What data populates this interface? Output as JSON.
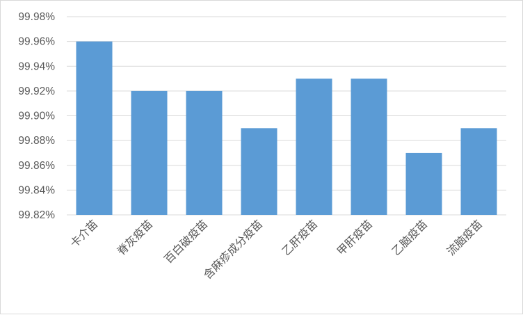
{
  "chart_data": {
    "type": "bar",
    "categories": [
      "卡介苗",
      "脊灰疫苗",
      "百白破疫苗",
      "含麻疹成分疫苗",
      "乙肝疫苗",
      "甲肝疫苗",
      "乙脑疫苗",
      "流脑疫苗"
    ],
    "values": [
      99.96,
      99.92,
      99.92,
      99.89,
      99.93,
      99.93,
      99.87,
      99.89
    ],
    "ylim": [
      99.82,
      99.98
    ],
    "yticks": [
      "99.82%",
      "99.84%",
      "99.86%",
      "99.88%",
      "99.90%",
      "99.92%",
      "99.94%",
      "99.96%",
      "99.98%"
    ],
    "ytick_values": [
      99.82,
      99.84,
      99.86,
      99.88,
      99.9,
      99.92,
      99.94,
      99.96,
      99.98
    ],
    "grid": true,
    "bar_color": "#5b9bd5",
    "grid_color": "#d9d9d9",
    "title": "",
    "xlabel": "",
    "ylabel": ""
  }
}
